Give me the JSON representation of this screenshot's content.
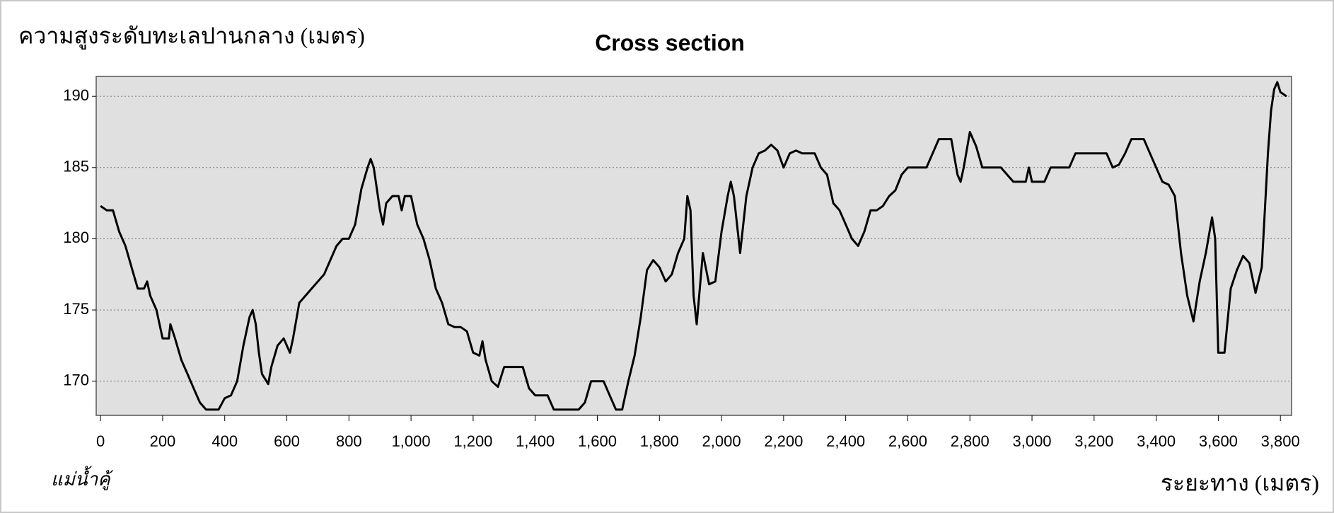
{
  "chart_data": {
    "type": "line",
    "title": "Cross section",
    "y_label": "ความสูงระดับทะเลปานกลาง (เมตร)",
    "x_label": "ระยะทาง (เมตร)",
    "annotation": "แม่น้ำคู้",
    "xlim": [
      -14,
      3836
    ],
    "ylim": [
      167.6,
      191.4
    ],
    "xticks": [
      0,
      200,
      400,
      600,
      800,
      {
        "value": 1000,
        "label": "1,000"
      },
      {
        "value": 1200,
        "label": "1,200"
      },
      {
        "value": 1400,
        "label": "1,400"
      },
      {
        "value": 1600,
        "label": "1,600"
      },
      {
        "value": 1800,
        "label": "1,800"
      },
      {
        "value": 2000,
        "label": "2,000"
      },
      {
        "value": 2200,
        "label": "2,200"
      },
      {
        "value": 2400,
        "label": "2,400"
      },
      {
        "value": 2600,
        "label": "2,600"
      },
      {
        "value": 2800,
        "label": "2,800"
      },
      {
        "value": 3000,
        "label": "3,000"
      },
      {
        "value": 3200,
        "label": "3,200"
      },
      {
        "value": 3400,
        "label": "3,400"
      },
      {
        "value": 3600,
        "label": "3,600"
      },
      {
        "value": 3800,
        "label": "3,800"
      }
    ],
    "yticks": [
      170,
      175,
      180,
      185,
      190
    ],
    "grid": true,
    "color": "#000000",
    "x": [
      0,
      20,
      40,
      60,
      80,
      100,
      120,
      140,
      150,
      160,
      180,
      200,
      220,
      225,
      240,
      260,
      280,
      300,
      320,
      340,
      380,
      400,
      420,
      440,
      460,
      480,
      490,
      500,
      510,
      520,
      540,
      550,
      570,
      590,
      600,
      610,
      620,
      640,
      660,
      680,
      700,
      720,
      740,
      760,
      780,
      800,
      820,
      840,
      860,
      870,
      880,
      900,
      910,
      920,
      940,
      960,
      970,
      980,
      1000,
      1020,
      1040,
      1060,
      1080,
      1100,
      1120,
      1140,
      1160,
      1180,
      1200,
      1220,
      1230,
      1240,
      1260,
      1280,
      1300,
      1320,
      1360,
      1380,
      1400,
      1440,
      1460,
      1540,
      1560,
      1580,
      1620,
      1640,
      1660,
      1680,
      1700,
      1720,
      1740,
      1760,
      1780,
      1800,
      1820,
      1840,
      1860,
      1880,
      1890,
      1900,
      1910,
      1920,
      1940,
      1960,
      1980,
      2000,
      2020,
      2030,
      2040,
      2060,
      2080,
      2100,
      2120,
      2140,
      2160,
      2180,
      2200,
      2220,
      2240,
      2260,
      2280,
      2300,
      2320,
      2340,
      2360,
      2380,
      2400,
      2420,
      2440,
      2460,
      2480,
      2500,
      2520,
      2540,
      2560,
      2580,
      2600,
      2640,
      2660,
      2680,
      2700,
      2740,
      2760,
      2770,
      2780,
      2800,
      2820,
      2840,
      2900,
      2920,
      2940,
      2980,
      2990,
      3000,
      3040,
      3060,
      3100,
      3120,
      3140,
      3200,
      3240,
      3260,
      3280,
      3300,
      3320,
      3360,
      3380,
      3400,
      3420,
      3440,
      3460,
      3480,
      3500,
      3520,
      3540,
      3560,
      3580,
      3590,
      3600,
      3620,
      3640,
      3660,
      3680,
      3700,
      3720,
      3740,
      3760,
      3770,
      3780,
      3790,
      3800,
      3820
    ],
    "values": [
      182.3,
      182,
      182,
      180.5,
      179.5,
      178,
      176.5,
      176.5,
      177,
      176,
      175,
      173,
      173,
      174,
      173,
      171.5,
      170.5,
      169.5,
      168.5,
      168,
      168,
      168.8,
      169,
      170,
      172.5,
      174.5,
      175,
      174,
      172,
      170.5,
      169.8,
      171,
      172.5,
      173,
      172.5,
      172,
      173,
      175.5,
      176,
      176.5,
      177,
      177.5,
      178.5,
      179.5,
      180,
      180,
      181,
      183.5,
      185,
      185.6,
      185,
      182,
      181,
      182.5,
      183,
      183,
      182,
      183,
      183,
      181,
      180,
      178.5,
      176.5,
      175.5,
      174,
      173.8,
      173.8,
      173.5,
      172,
      171.8,
      172.8,
      171.5,
      170,
      169.6,
      171,
      171,
      171,
      169.5,
      169,
      169,
      168,
      168,
      168.5,
      170,
      170,
      169,
      168,
      168,
      170,
      171.8,
      174.5,
      177.8,
      178.5,
      178,
      177,
      177.5,
      179,
      180,
      183,
      182,
      176,
      174,
      179,
      176.8,
      177,
      180.5,
      183,
      184,
      183,
      179,
      183,
      185,
      186,
      186.2,
      186.6,
      186.2,
      185,
      186,
      186.2,
      186,
      186,
      186,
      185,
      184.5,
      182.5,
      182,
      181,
      180,
      179.5,
      180.5,
      182,
      182,
      182.3,
      183,
      183.4,
      184.5,
      185,
      185,
      185,
      186,
      187,
      187,
      184.5,
      184,
      185,
      187.5,
      186.5,
      185,
      185,
      184.5,
      184,
      184,
      185,
      184,
      184,
      185,
      185,
      185,
      186,
      186,
      186,
      185,
      185.2,
      186,
      187,
      187,
      186,
      185,
      184,
      183.8,
      183,
      179,
      176,
      174.2,
      177,
      179,
      181.5,
      180,
      172,
      172,
      176.5,
      177.8,
      178.8,
      178.3,
      176.2,
      178,
      186,
      189,
      190.5,
      191,
      190.3,
      190
    ]
  }
}
